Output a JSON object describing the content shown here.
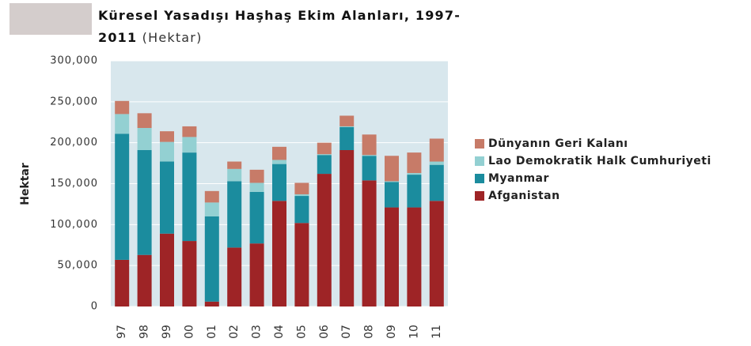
{
  "chart_data": {
    "type": "stacked_bar",
    "title": "Küresel Yasadışı Haşhaş Ekim Alanları, 1997-2011",
    "subtitle": "(Hektar)",
    "y_label": "Hektar",
    "categories": [
      "97",
      "98",
      "99",
      "00",
      "01",
      "02",
      "03",
      "04",
      "05",
      "06",
      "07",
      "08",
      "09",
      "10",
      "11"
    ],
    "series": [
      {
        "name": "Afganistan",
        "color": "#9e2426",
        "values": [
          57000,
          63000,
          89000,
          80000,
          6000,
          72000,
          77000,
          129000,
          102000,
          162000,
          191000,
          154000,
          121000,
          121000,
          129000
        ]
      },
      {
        "name": "Myanmar",
        "color": "#1b8c9e",
        "values": [
          154000,
          128000,
          88000,
          108000,
          104000,
          81000,
          63000,
          45000,
          33000,
          23000,
          28000,
          30000,
          31000,
          40000,
          44000
        ]
      },
      {
        "name": "Lao Demokratik Halk Cumhuriyeti",
        "color": "#93d0d2",
        "values": [
          24000,
          27000,
          24000,
          19000,
          17000,
          15000,
          11000,
          5000,
          2000,
          1000,
          1000,
          1000,
          1000,
          2000,
          4000
        ]
      },
      {
        "name": "Dünyanın Geri Kalanı",
        "color": "#c77b68",
        "values": [
          16000,
          18000,
          13000,
          13000,
          14000,
          9000,
          16000,
          16000,
          14000,
          14000,
          13000,
          25000,
          31000,
          25000,
          28000
        ]
      }
    ],
    "ylim": [
      0,
      300000
    ],
    "yticks": [
      0,
      {
        "value": 50000,
        "label": "50,000"
      },
      {
        "value": 100000,
        "label": "100,000"
      },
      {
        "value": 150000,
        "label": "150,000"
      },
      {
        "value": 200000,
        "label": "200,000"
      },
      {
        "value": 250000,
        "label": "250,000"
      },
      {
        "value": 300000,
        "label": "300,000"
      }
    ],
    "grid": true,
    "plot_background": "#d8e7ed",
    "legend": "right"
  }
}
